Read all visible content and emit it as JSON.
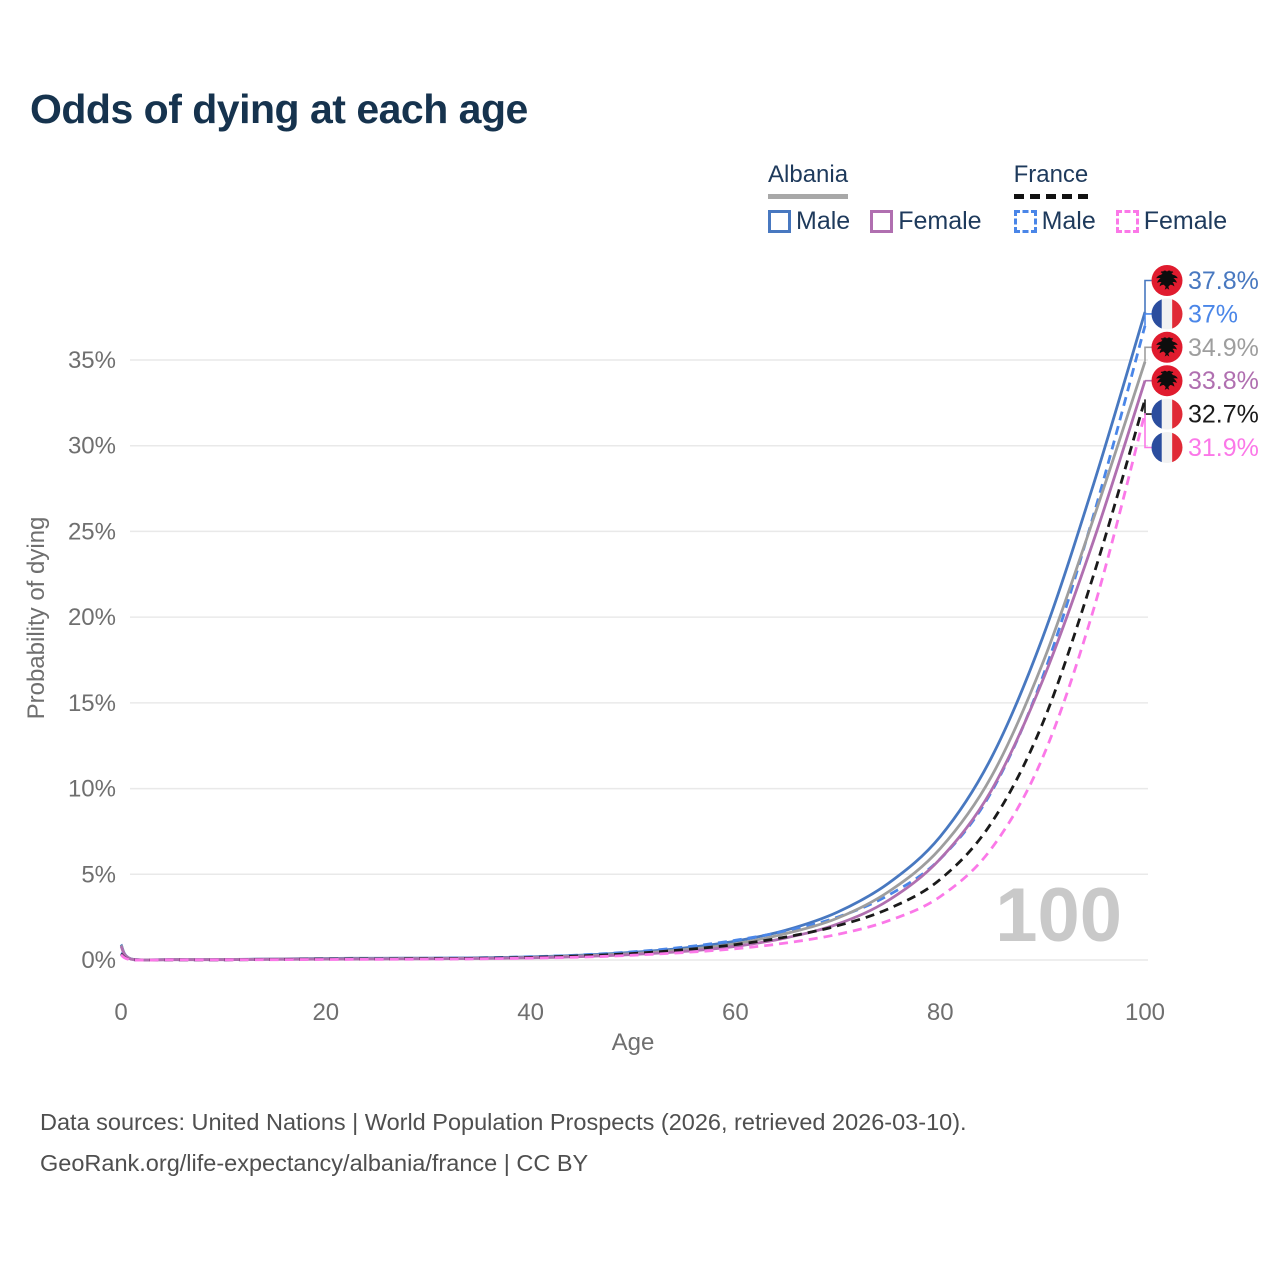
{
  "title": "Odds of dying at each age",
  "legend": {
    "groups": [
      {
        "country": "Albania",
        "line_color": "#a8a8a8",
        "line_style": "solid",
        "items": [
          {
            "label": "Male",
            "color": "#4878c0",
            "style": "solid"
          },
          {
            "label": "Female",
            "color": "#b06fb0",
            "style": "solid"
          }
        ]
      },
      {
        "country": "France",
        "line_color": "#111111",
        "line_style": "dashed",
        "items": [
          {
            "label": "Male",
            "color": "#4a86e8",
            "style": "dashed"
          },
          {
            "label": "Female",
            "color": "#fb78e8",
            "style": "dashed"
          }
        ]
      }
    ]
  },
  "chart_data": {
    "type": "line",
    "title": "Odds of dying at each age",
    "xlabel": "Age",
    "ylabel": "Probability of dying",
    "xlim": [
      0,
      100
    ],
    "ylim": [
      0,
      38.5
    ],
    "x_ticks": [
      0,
      20,
      40,
      60,
      80,
      100
    ],
    "y_ticks": [
      0,
      5,
      10,
      15,
      20,
      25,
      30,
      35
    ],
    "y_tick_suffix": "%",
    "grid": "horizontal",
    "legend_position": "top-right",
    "watermark": "100",
    "x": [
      0,
      1,
      5,
      10,
      15,
      20,
      25,
      30,
      35,
      40,
      45,
      50,
      55,
      60,
      65,
      70,
      75,
      80,
      85,
      90,
      95,
      100
    ],
    "series": [
      {
        "name": "Albania Male",
        "flag": "albania",
        "color": "#4878c0",
        "dash": false,
        "end_label": "37.8%",
        "values": [
          0.9,
          0.06,
          0.03,
          0.03,
          0.06,
          0.09,
          0.1,
          0.11,
          0.13,
          0.18,
          0.28,
          0.45,
          0.7,
          1.1,
          1.75,
          2.8,
          4.5,
          7.2,
          11.8,
          18.8,
          27.8,
          37.8
        ]
      },
      {
        "name": "France Male",
        "flag": "france",
        "color": "#4a86e8",
        "dash": true,
        "end_label": "37%",
        "values": [
          0.4,
          0.03,
          0.01,
          0.01,
          0.04,
          0.07,
          0.08,
          0.1,
          0.13,
          0.19,
          0.3,
          0.48,
          0.75,
          1.15,
          1.7,
          2.5,
          3.8,
          5.9,
          9.8,
          16.5,
          26.0,
          37.0
        ]
      },
      {
        "name": "Albania",
        "flag": "albania",
        "color": "#9e9e9e",
        "dash": false,
        "end_label": "34.9%",
        "values": [
          0.85,
          0.05,
          0.03,
          0.03,
          0.05,
          0.07,
          0.08,
          0.09,
          0.11,
          0.15,
          0.24,
          0.38,
          0.6,
          0.95,
          1.55,
          2.45,
          4.0,
          6.5,
          10.7,
          17.3,
          25.8,
          34.9
        ]
      },
      {
        "name": "Albania Female",
        "flag": "albania",
        "color": "#b06fb0",
        "dash": false,
        "end_label": "33.8%",
        "values": [
          0.8,
          0.05,
          0.02,
          0.02,
          0.04,
          0.05,
          0.06,
          0.07,
          0.09,
          0.13,
          0.2,
          0.32,
          0.5,
          0.8,
          1.3,
          2.1,
          3.5,
          5.9,
          9.9,
          16.3,
          24.5,
          33.8
        ]
      },
      {
        "name": "France",
        "flag": "france",
        "color": "#1a1a1a",
        "dash": true,
        "end_label": "32.7%",
        "values": [
          0.35,
          0.03,
          0.01,
          0.01,
          0.03,
          0.05,
          0.06,
          0.08,
          0.1,
          0.15,
          0.24,
          0.38,
          0.6,
          0.9,
          1.35,
          2.0,
          3.0,
          4.7,
          8.0,
          13.8,
          22.5,
          32.7
        ]
      },
      {
        "name": "France Female",
        "flag": "france",
        "color": "#fb78e8",
        "dash": true,
        "end_label": "31.9%",
        "values": [
          0.3,
          0.02,
          0.01,
          0.01,
          0.02,
          0.03,
          0.04,
          0.05,
          0.07,
          0.11,
          0.17,
          0.28,
          0.44,
          0.66,
          1.0,
          1.5,
          2.3,
          3.7,
          6.5,
          11.8,
          20.5,
          31.9
        ]
      }
    ],
    "flag_colors": {
      "albania_red": "#e01b2e",
      "albania_eagle": "#0d0d0d",
      "france_blue": "#2b4d9e",
      "france_white": "#f2f2f2",
      "france_red": "#e02a36"
    }
  },
  "footer": {
    "line1": "Data sources: United Nations | World Population Prospects (2026, retrieved 2026-03-10).",
    "line2": "GeoRank.org/life-expectancy/albania/france | CC BY"
  }
}
